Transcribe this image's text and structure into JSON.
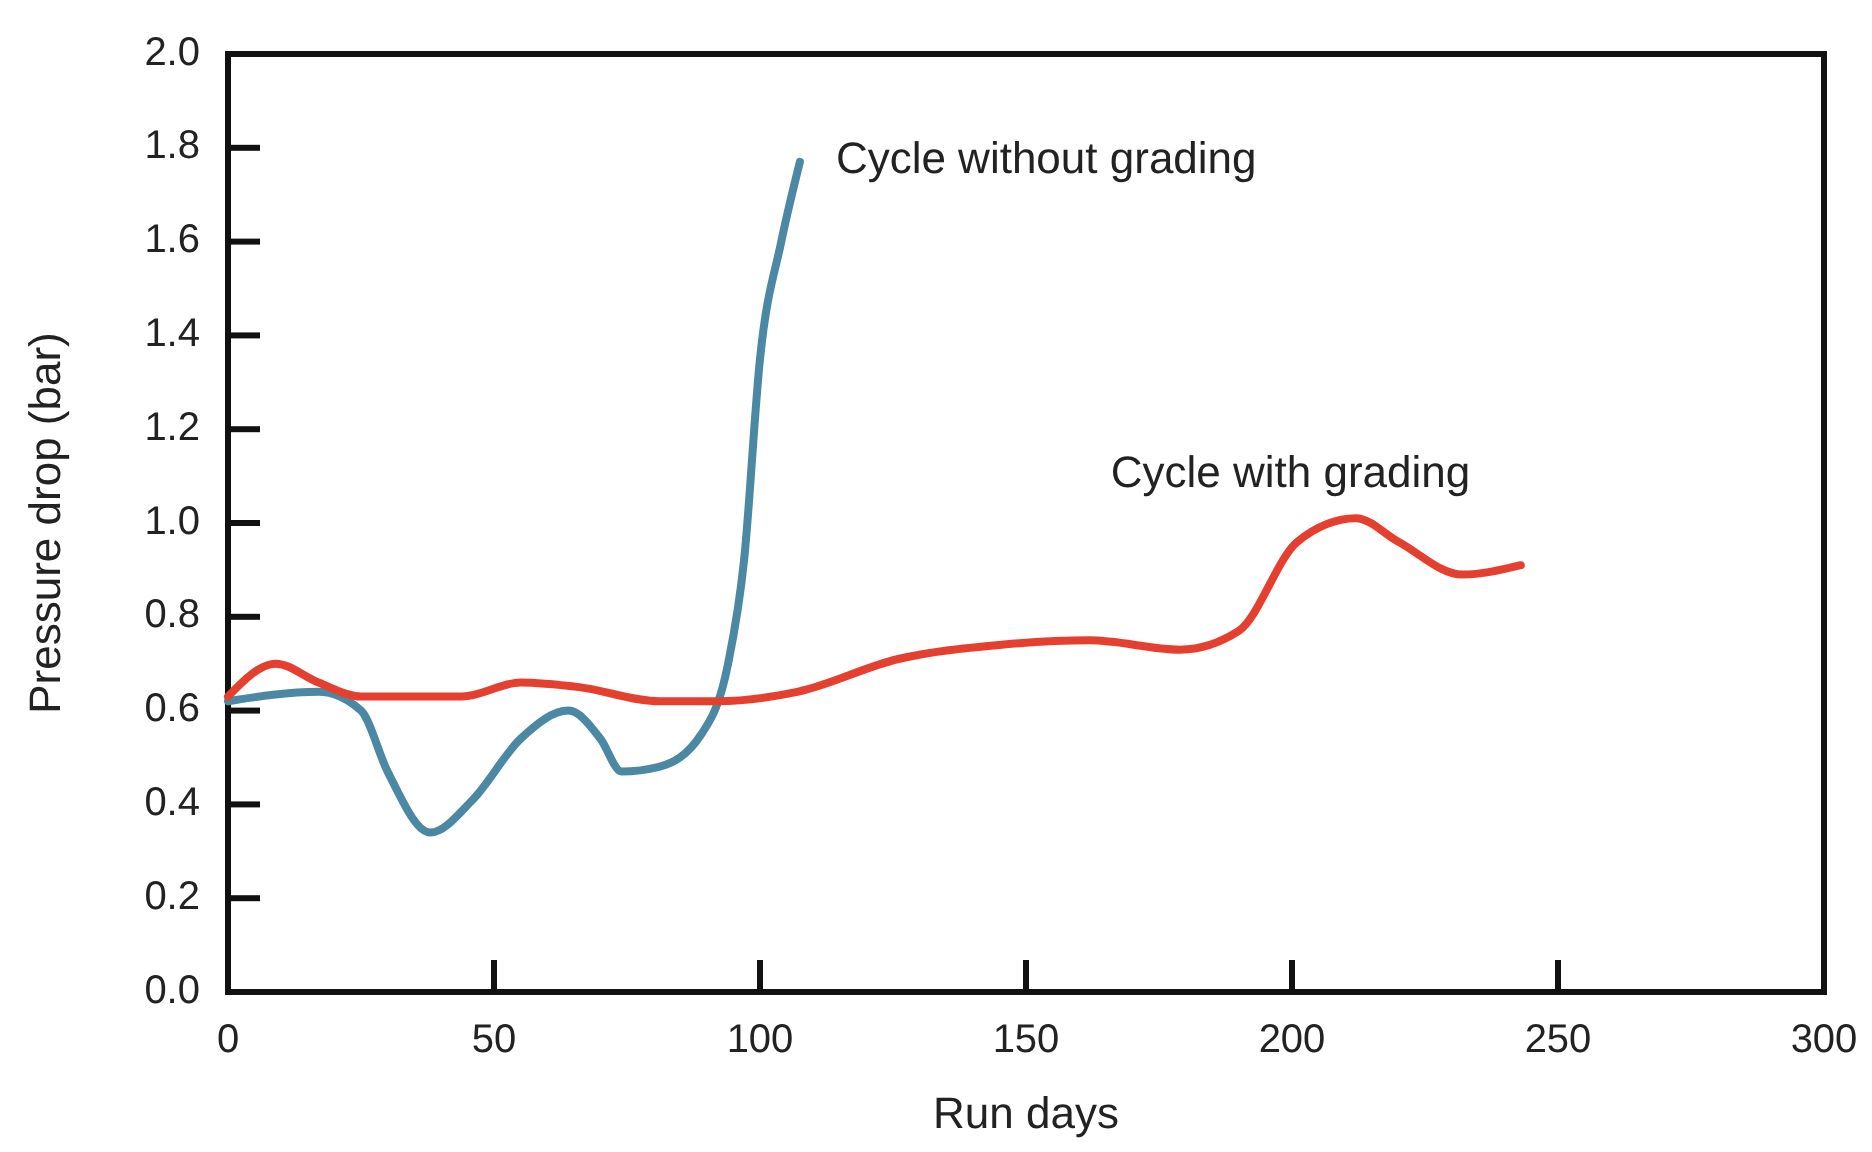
{
  "chart_data": {
    "type": "line",
    "xlabel": "Run days",
    "ylabel": "Pressure drop (bar)",
    "xlim": [
      0,
      300
    ],
    "xticks": [
      0,
      50,
      100,
      150,
      200,
      250,
      300
    ],
    "ylim": [
      0,
      2.0
    ],
    "yticks": [
      {
        "value": 0,
        "label": "0.0"
      },
      {
        "value": 0.2,
        "label": "0.2"
      },
      {
        "value": 0.4,
        "label": "0.4"
      },
      {
        "value": 0.6,
        "label": "0.6"
      },
      {
        "value": 0.8,
        "label": "0.8"
      },
      {
        "value": 1.0,
        "label": "1.0"
      },
      {
        "value": 1.2,
        "label": "1.2"
      },
      {
        "value": 1.4,
        "label": "1.4"
      },
      {
        "value": 1.6,
        "label": "1.6"
      },
      {
        "value": 1.8,
        "label": "1.8"
      },
      {
        "value": 2.0,
        "label": "2.0"
      }
    ],
    "grid": false,
    "series": [
      {
        "name": "Cycle without grading",
        "color": "#4a88a3",
        "x": [
          0,
          17,
          25,
          30,
          38,
          46,
          55,
          64,
          70,
          74,
          81,
          89,
          94,
          97,
          100,
          104,
          107.5
        ],
        "values": [
          0.62,
          0.64,
          0.6,
          0.47,
          0.34,
          0.41,
          0.54,
          0.6,
          0.54,
          0.47,
          0.48,
          0.55,
          0.7,
          0.92,
          1.35,
          1.6,
          1.77
        ]
      },
      {
        "name": "Cycle with grading",
        "color": "#e5402f",
        "x": [
          0,
          9,
          17,
          25,
          44,
          55,
          66,
          81,
          92,
          107,
          126,
          145,
          162,
          179,
          190,
          201,
          212,
          220,
          232,
          243
        ],
        "values": [
          0.63,
          0.7,
          0.66,
          0.63,
          0.63,
          0.66,
          0.65,
          0.62,
          0.62,
          0.64,
          0.71,
          0.74,
          0.75,
          0.73,
          0.77,
          0.96,
          1.01,
          0.96,
          0.89,
          0.91
        ]
      }
    ]
  }
}
